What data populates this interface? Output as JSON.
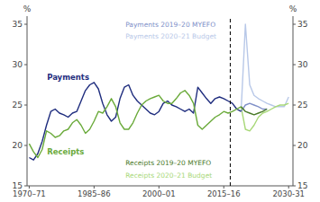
{
  "chart_data": {
    "type": "line",
    "ylabel": "%",
    "y2label": "%",
    "xlim": [
      1969.5,
      2031
    ],
    "xticks": [
      {
        "value": 1970,
        "label": "1970–71"
      },
      {
        "value": 1985,
        "label": "1985–86"
      },
      {
        "value": 2000,
        "label": "2000–01"
      },
      {
        "value": 2015,
        "label": "2015–16"
      },
      {
        "value": 2030,
        "label": "2030-31"
      }
    ],
    "ylim": [
      15,
      36
    ],
    "yticks": [
      15,
      20,
      25,
      30,
      35
    ],
    "y2lim": [
      15,
      36
    ],
    "y2ticks": [
      15,
      20,
      25,
      30,
      35
    ],
    "grid": false,
    "reference_line_x": 2016.5,
    "series": [
      {
        "name": "Payments 2020–21 Budget",
        "color": "#b8c8e8",
        "x": [
          2019,
          2020,
          2021,
          2022,
          2023,
          2024,
          2025,
          2026,
          2027,
          2028,
          2029,
          2030
        ],
        "values": [
          24.2,
          35.0,
          27.5,
          26.2,
          25.8,
          25.5,
          25.2,
          25.0,
          24.8,
          24.8,
          24.8,
          26.0
        ]
      },
      {
        "name": "Receipts 2020–21 Budget",
        "color": "#a8d878",
        "x": [
          2019,
          2020,
          2021,
          2022,
          2023,
          2024,
          2025,
          2026,
          2027,
          2028,
          2029,
          2030
        ],
        "values": [
          24.8,
          22.0,
          21.8,
          22.5,
          23.5,
          24.0,
          24.2,
          24.5,
          24.8,
          25.0,
          25.0,
          25.2
        ]
      },
      {
        "name": "Payments 2019–20 MYEFO",
        "color": "#8090c8",
        "x": [
          2019,
          2020,
          2021,
          2022,
          2023,
          2024,
          2025
        ],
        "values": [
          24.2,
          25.0,
          25.2,
          25.0,
          24.8,
          24.5,
          24.5
        ]
      },
      {
        "name": "Receipts 2019–20 MYEFO",
        "color": "#4a7a28",
        "x": [
          2019,
          2020,
          2021,
          2022,
          2023,
          2024,
          2025
        ],
        "values": [
          24.8,
          24.2,
          24.0,
          23.8,
          24.0,
          24.2,
          24.5
        ]
      },
      {
        "name": "Payments",
        "color": "#1f2d7e",
        "x": [
          1970,
          1971,
          1972,
          1973,
          1974,
          1975,
          1976,
          1977,
          1978,
          1979,
          1980,
          1981,
          1982,
          1983,
          1984,
          1985,
          1986,
          1987,
          1988,
          1989,
          1990,
          1991,
          1992,
          1993,
          1994,
          1995,
          1996,
          1997,
          1998,
          1999,
          2000,
          2001,
          2002,
          2003,
          2004,
          2005,
          2006,
          2007,
          2008,
          2009,
          2010,
          2011,
          2012,
          2013,
          2014,
          2015,
          2016,
          2017,
          2018,
          2019
        ],
        "values": [
          18.5,
          18.2,
          19.0,
          20.5,
          22.5,
          24.2,
          24.5,
          24.0,
          23.8,
          23.5,
          24.0,
          24.2,
          25.5,
          26.8,
          27.5,
          27.8,
          27.0,
          25.2,
          23.8,
          23.0,
          23.5,
          25.8,
          27.2,
          27.5,
          26.2,
          25.5,
          25.0,
          24.5,
          24.0,
          23.8,
          24.2,
          25.2,
          25.5,
          25.0,
          24.8,
          24.5,
          24.2,
          24.5,
          24.0,
          27.2,
          26.5,
          25.8,
          25.2,
          25.8,
          26.0,
          25.8,
          25.5,
          25.2,
          24.5,
          24.2
        ]
      },
      {
        "name": "Receipts",
        "color": "#6aaa3a",
        "x": [
          1970,
          1971,
          1972,
          1973,
          1974,
          1975,
          1976,
          1977,
          1978,
          1979,
          1980,
          1981,
          1982,
          1983,
          1984,
          1985,
          1986,
          1987,
          1988,
          1989,
          1990,
          1991,
          1992,
          1993,
          1994,
          1995,
          1996,
          1997,
          1998,
          1999,
          2000,
          2001,
          2002,
          2003,
          2004,
          2005,
          2006,
          2007,
          2008,
          2009,
          2010,
          2011,
          2012,
          2013,
          2014,
          2015,
          2016,
          2017,
          2018,
          2019
        ],
        "values": [
          20.2,
          19.2,
          18.5,
          19.5,
          21.8,
          21.5,
          21.0,
          21.2,
          21.8,
          22.0,
          22.8,
          23.2,
          22.5,
          21.5,
          22.0,
          23.0,
          24.2,
          24.0,
          24.8,
          25.8,
          24.8,
          22.8,
          22.0,
          22.0,
          22.8,
          24.0,
          25.0,
          25.5,
          25.8,
          26.0,
          26.2,
          25.5,
          25.2,
          25.2,
          25.8,
          26.5,
          26.8,
          26.2,
          25.2,
          22.5,
          22.0,
          22.5,
          23.0,
          23.5,
          23.8,
          24.2,
          24.0,
          24.2,
          24.5,
          24.8
        ]
      }
    ]
  }
}
